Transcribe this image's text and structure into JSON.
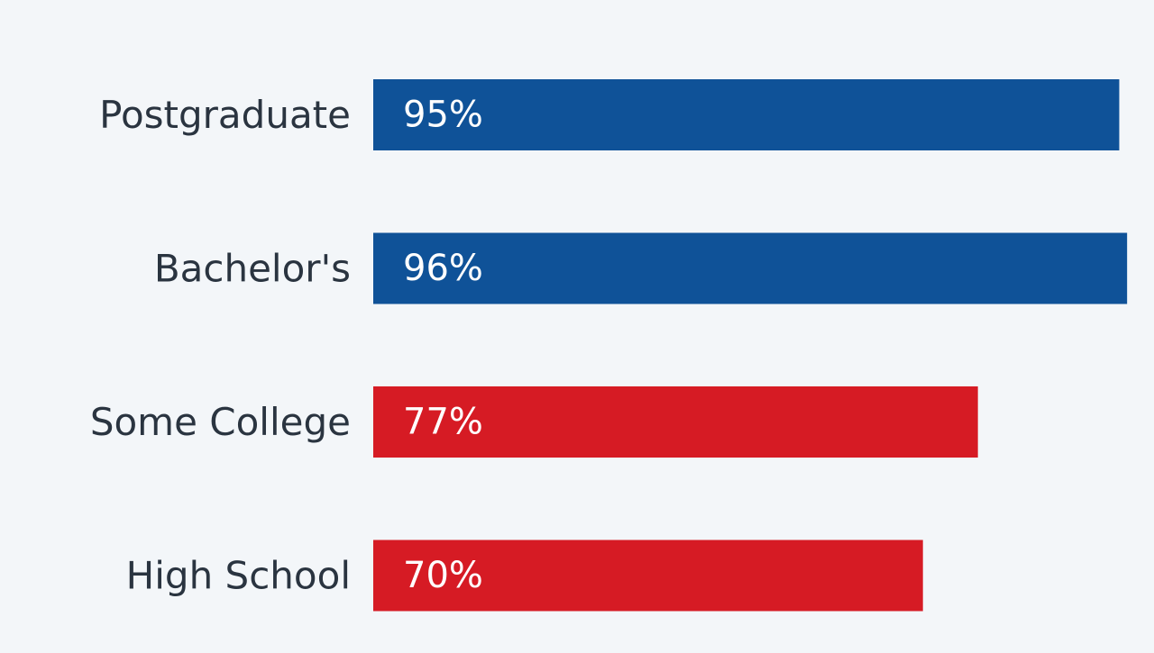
{
  "chart_data": {
    "type": "bar",
    "orientation": "horizontal",
    "categories": [
      "Postgraduate",
      "Bachelor's",
      "Some College",
      "High School"
    ],
    "values": [
      95,
      96,
      77,
      70
    ],
    "value_labels": [
      "95%",
      "96%",
      "77%",
      "70%"
    ],
    "bar_colors": [
      "#0f5298",
      "#0f5298",
      "#d61b24",
      "#d61b24"
    ],
    "xlim": [
      0,
      100
    ],
    "grid": false,
    "legend": "none",
    "title": "",
    "xlabel": "",
    "ylabel": ""
  },
  "colors": {
    "background": "#f3f6f9",
    "blue": "#0f5298",
    "red": "#d61b24",
    "label_text": "#2a3440",
    "value_text": "#ffffff"
  }
}
